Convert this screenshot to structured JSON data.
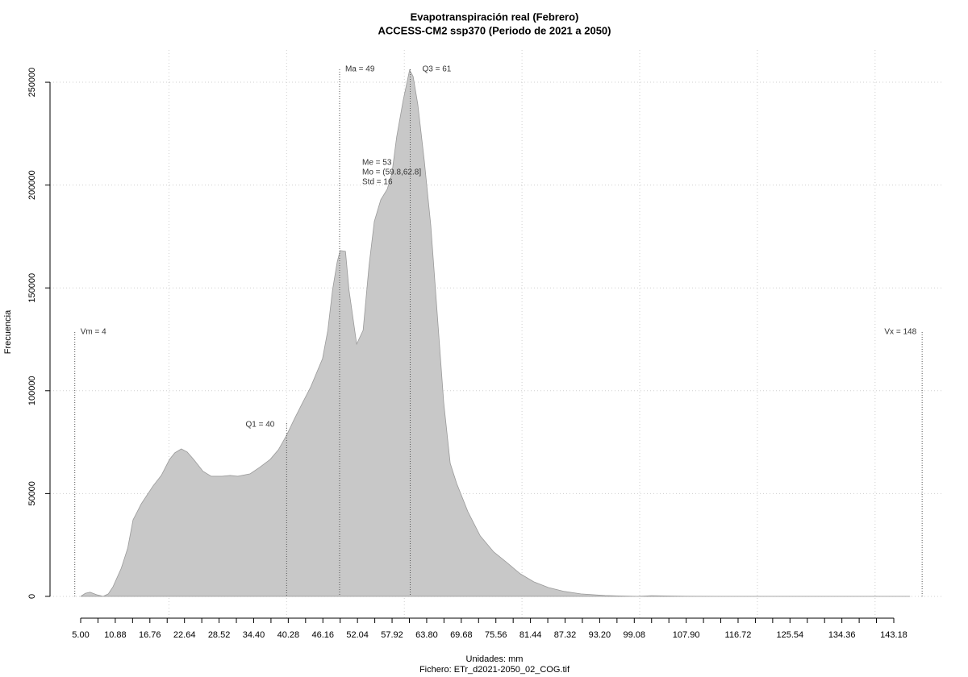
{
  "chart_data": {
    "type": "area",
    "title": "Evapotranspiración real (Febrero)",
    "subtitle": "ACCESS-CM2 ssp370 (Periodo de 2021 a 2050)",
    "x_label": "Unidades: mm",
    "y_label": "Frecuencia",
    "caption": "Fichero: ETr_d2021-2050_02_COG.tif",
    "color": "#c8c8c8",
    "line_color": "#9a9a9a",
    "grid": true,
    "x": [
      5,
      5.8,
      6.6,
      7.7,
      8.8,
      9.7,
      10.5,
      11.9,
      13,
      13.9,
      15.3,
      17.3,
      18.7,
      20.1,
      21,
      22.1,
      23.1,
      24.2,
      25.8,
      27.2,
      29,
      30.4,
      31.7,
      33.8,
      35.4,
      37.2,
      38.6,
      40,
      41.3,
      42.7,
      44.1,
      46.1,
      47,
      47.8,
      48.6,
      49.1,
      50,
      50.6,
      51.9,
      53,
      54,
      54.9,
      56,
      57.1,
      57.9,
      58.7,
      59.8,
      60.9,
      61.5,
      62.3,
      63.4,
      64.5,
      65.6,
      66.7,
      67.8,
      68.9,
      70.8,
      72.9,
      75.2,
      77.4,
      79.7,
      82,
      84.5,
      87.2,
      90,
      94.1,
      99.6,
      102,
      107.8,
      128.4,
      145.9
    ],
    "values": [
      0,
      1500,
      2000,
      800,
      0,
      1200,
      4700,
      13700,
      23500,
      37200,
      45000,
      53700,
      58800,
      66600,
      69800,
      71700,
      70200,
      66600,
      60800,
      58400,
      58400,
      58800,
      58400,
      59600,
      62700,
      66600,
      71300,
      78400,
      86200,
      94100,
      101900,
      115600,
      129400,
      149000,
      162700,
      168200,
      167800,
      149000,
      122700,
      129400,
      160700,
      182300,
      192900,
      198000,
      205800,
      223400,
      241100,
      256000,
      252800,
      239100,
      211700,
      180300,
      137200,
      94100,
      64700,
      54900,
      41200,
      29400,
      21600,
      16500,
      11000,
      7100,
      4300,
      2400,
      1200,
      400,
      0,
      300,
      50,
      10,
      0
    ],
    "xlim": [
      -0.21,
      151.68
    ],
    "ylim": [
      -10600,
      265700
    ],
    "xticks": [
      {
        "value": 5,
        "label": "5.00"
      },
      {
        "value": 10.88,
        "label": "10.88"
      },
      {
        "value": 16.76,
        "label": "16.76"
      },
      {
        "value": 22.64,
        "label": "22.64"
      },
      {
        "value": 28.52,
        "label": "28.52"
      },
      {
        "value": 34.4,
        "label": "34.40"
      },
      {
        "value": 40.28,
        "label": "40.28"
      },
      {
        "value": 46.16,
        "label": "46.16"
      },
      {
        "value": 52.04,
        "label": "52.04"
      },
      {
        "value": 57.92,
        "label": "57.92"
      },
      {
        "value": 63.8,
        "label": "63.80"
      },
      {
        "value": 69.68,
        "label": "69.68"
      },
      {
        "value": 75.56,
        "label": "75.56"
      },
      {
        "value": 81.44,
        "label": "81.44"
      },
      {
        "value": 87.32,
        "label": "87.32"
      },
      {
        "value": 93.2,
        "label": "93.20"
      },
      {
        "value": 99.08,
        "label": "99.08"
      },
      {
        "value": 107.9,
        "label": "107.90"
      },
      {
        "value": 116.72,
        "label": "116.72"
      },
      {
        "value": 125.54,
        "label": "125.54"
      },
      {
        "value": 134.36,
        "label": "134.36"
      },
      {
        "value": 143.18,
        "label": "143.18"
      }
    ],
    "xminorticks": [
      7.94,
      13.82,
      19.7,
      25.58,
      31.46,
      37.34,
      43.22,
      49.1,
      54.98,
      60.86,
      66.74,
      72.62,
      78.5,
      84.38,
      90.26,
      96.14,
      102.02,
      104.96,
      110.84,
      113.78,
      119.66,
      122.6,
      128.48,
      131.42,
      137.3,
      140.24
    ],
    "xgrid": [
      20,
      40,
      60,
      80,
      100,
      120,
      140
    ],
    "yticks": [
      0,
      50000,
      100000,
      150000,
      200000,
      250000
    ],
    "reference_lines": [
      {
        "label": "Vm = 4",
        "value": 4
      },
      {
        "label": "Q1 = 40",
        "value": 40
      },
      {
        "label": "Ma = 49",
        "value": 49
      },
      {
        "label": "Q3 = 61",
        "value": 61
      },
      {
        "label": "Vx = 148",
        "value": 148
      }
    ],
    "stats": [
      "Me = 53",
      "Mo = (59.8,62.8]",
      "Std = 16"
    ]
  }
}
